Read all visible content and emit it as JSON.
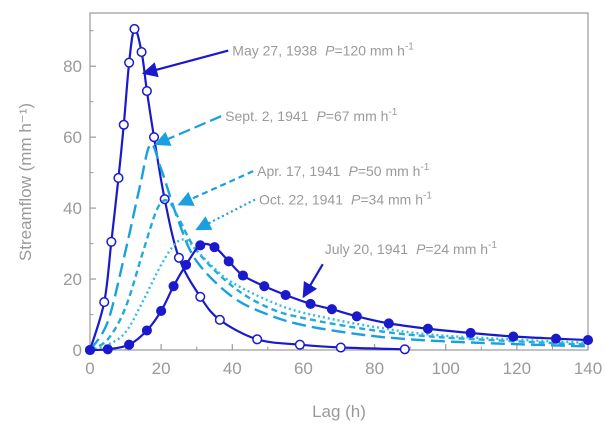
{
  "chart_data": {
    "type": "line",
    "xlabel": "Lag (h)",
    "ylabel": "Streamflow (mm h⁻¹)",
    "xlim": [
      0,
      140
    ],
    "ylim": [
      0,
      95
    ],
    "xticks": [
      "0",
      "20",
      "40",
      "60",
      "80",
      "100",
      "120",
      "140"
    ],
    "yticks": [
      "0",
      "20",
      "40",
      "60",
      "80"
    ],
    "grid": false,
    "series": [
      {
        "name": "May 27, 1938",
        "color": "#1a1acc",
        "style": "solid",
        "marker": "open-circle",
        "points": [
          [
            0,
            0
          ],
          [
            4,
            13.5
          ],
          [
            6,
            30.5
          ],
          [
            8,
            48.5
          ],
          [
            9.5,
            63.5
          ],
          [
            11,
            81
          ],
          [
            12.5,
            90.5
          ],
          [
            14.5,
            84
          ],
          [
            16,
            73
          ],
          [
            18,
            60
          ],
          [
            21,
            42.5
          ],
          [
            25,
            26
          ],
          [
            31,
            15
          ],
          [
            36.5,
            8.5
          ],
          [
            47,
            3
          ],
          [
            59,
            1.5
          ],
          [
            70.5,
            0.7
          ],
          [
            88.5,
            0.2
          ]
        ]
      },
      {
        "name": "Sept. 2, 1941",
        "color": "#1aa0e0",
        "style": "dash",
        "marker": "none",
        "points": [
          [
            0,
            0
          ],
          [
            5,
            8
          ],
          [
            10,
            28
          ],
          [
            14,
            46
          ],
          [
            17,
            58
          ],
          [
            20,
            51
          ],
          [
            25,
            36
          ],
          [
            30,
            25
          ],
          [
            40,
            15
          ],
          [
            50,
            10
          ],
          [
            60,
            7
          ],
          [
            75,
            4.5
          ],
          [
            90,
            3
          ],
          [
            110,
            2
          ],
          [
            140,
            1
          ]
        ]
      },
      {
        "name": "Apr. 17, 1941",
        "color": "#22aadd",
        "style": "short-dash",
        "marker": "none",
        "points": [
          [
            0,
            0
          ],
          [
            5,
            3
          ],
          [
            10,
            12
          ],
          [
            15,
            28
          ],
          [
            19,
            40
          ],
          [
            22,
            42
          ],
          [
            25,
            37
          ],
          [
            30,
            28
          ],
          [
            40,
            18
          ],
          [
            50,
            12
          ],
          [
            60,
            9
          ],
          [
            80,
            5.5
          ],
          [
            100,
            3.5
          ],
          [
            140,
            1.5
          ]
        ]
      },
      {
        "name": "Oct. 22, 1941",
        "color": "#33bbe6",
        "style": "dot",
        "marker": "none",
        "points": [
          [
            0,
            0
          ],
          [
            5,
            1.5
          ],
          [
            10,
            5
          ],
          [
            15,
            14
          ],
          [
            20,
            24
          ],
          [
            24,
            30
          ],
          [
            27,
            31
          ],
          [
            30,
            28
          ],
          [
            35,
            23
          ],
          [
            40,
            19
          ],
          [
            50,
            14
          ],
          [
            60,
            10.5
          ],
          [
            80,
            6.5
          ],
          [
            100,
            4
          ],
          [
            140,
            2
          ]
        ]
      },
      {
        "name": "July 20, 1941",
        "color": "#1a1acc",
        "style": "solid",
        "marker": "filled-circle",
        "points": [
          [
            0,
            0
          ],
          [
            5,
            0.2
          ],
          [
            11,
            1.5
          ],
          [
            16,
            5.5
          ],
          [
            20,
            11
          ],
          [
            23.5,
            18
          ],
          [
            27,
            24
          ],
          [
            31,
            29.5
          ],
          [
            35,
            29
          ],
          [
            39,
            25
          ],
          [
            43,
            21
          ],
          [
            49,
            18
          ],
          [
            55,
            15.5
          ],
          [
            62,
            13
          ],
          [
            68,
            11.5
          ],
          [
            75,
            9.5
          ],
          [
            84,
            7.5
          ],
          [
            95,
            6
          ],
          [
            107,
            4.8
          ],
          [
            119,
            3.8
          ],
          [
            131,
            3.2
          ],
          [
            140,
            2.8
          ]
        ]
      }
    ],
    "annotations": [
      {
        "date": "May 27, 1938",
        "p_label": "P",
        "p_value": "=120 mm h",
        "p_exp": "-1",
        "target": [
          15,
          78
        ],
        "text_at": [
          40,
          83
        ]
      },
      {
        "date": "Sept. 2, 1941",
        "p_label": "P",
        "p_value": "=67 mm h",
        "p_exp": "-1",
        "target": [
          18.5,
          58
        ],
        "text_at": [
          38,
          64.5
        ]
      },
      {
        "date": "Apr. 17, 1941",
        "p_label": "P",
        "p_value": "=50 mm h",
        "p_exp": "-1",
        "target": [
          25,
          41
        ],
        "text_at": [
          47,
          49
        ]
      },
      {
        "date": "Oct. 22, 1941",
        "p_label": "P",
        "p_value": "=34 mm h",
        "p_exp": "-1",
        "target": [
          30,
          34
        ],
        "text_at": [
          47.5,
          41
        ]
      },
      {
        "date": "July 20, 1941",
        "p_label": "P",
        "p_value": "=24 mm h",
        "p_exp": "-1",
        "target": [
          60,
          15
        ],
        "text_at": [
          66,
          27
        ]
      }
    ]
  }
}
